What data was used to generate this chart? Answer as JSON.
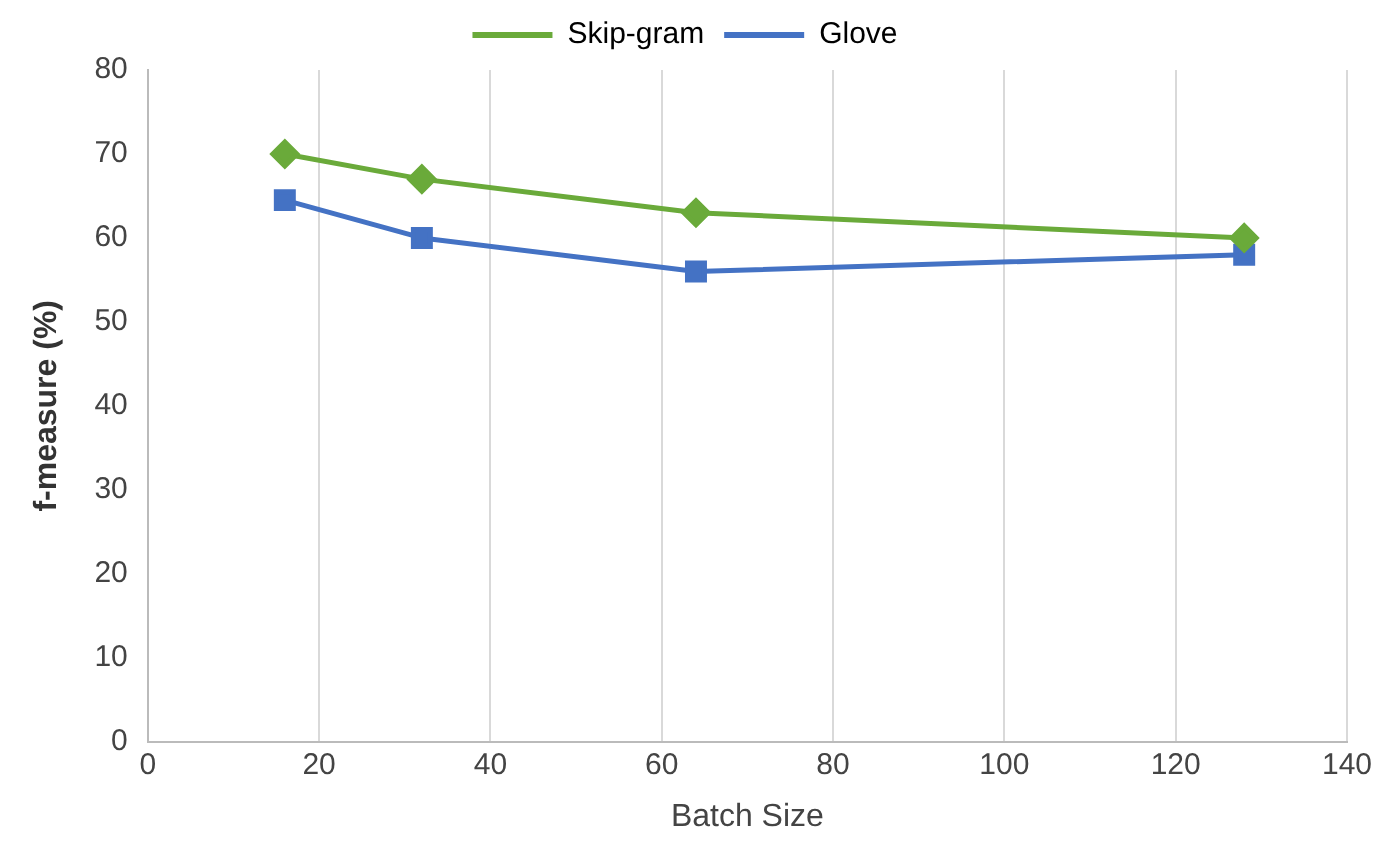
{
  "chart_data": {
    "type": "line",
    "xlabel": "Batch Size",
    "ylabel": "f-measure (%)",
    "series": [
      {
        "name": "Skip-gram",
        "color": "#6aaa3a",
        "marker": "diamond",
        "x": [
          16,
          32,
          64,
          128
        ],
        "values": [
          70,
          67,
          63,
          60
        ]
      },
      {
        "name": "Glove",
        "color": "#4472c4",
        "marker": "square",
        "x": [
          16,
          32,
          64,
          128
        ],
        "values": [
          64.5,
          60,
          56,
          58
        ]
      }
    ],
    "xlim": [
      0,
      140
    ],
    "xticks": [
      0,
      20,
      40,
      60,
      80,
      100,
      120,
      140
    ],
    "ylim": [
      0,
      80
    ],
    "yticks": [
      0,
      10,
      20,
      30,
      40,
      50,
      60,
      70,
      80
    ],
    "grid": "x",
    "legend": "top"
  }
}
